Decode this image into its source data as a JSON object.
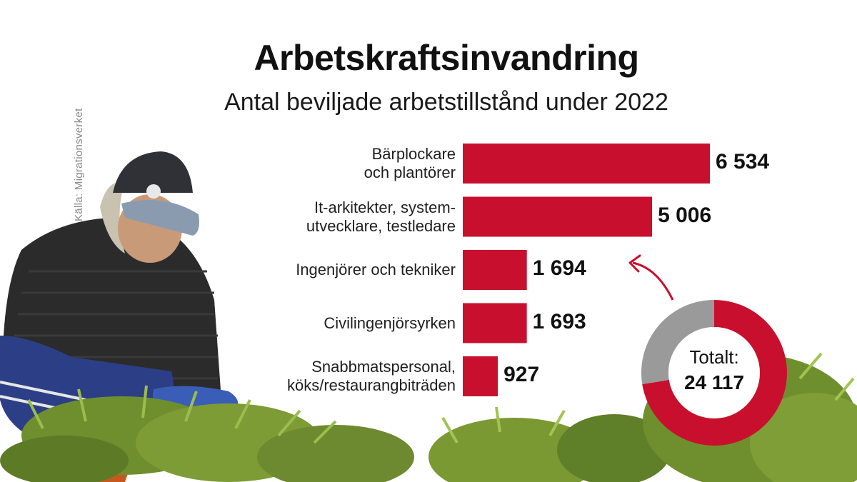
{
  "chart_data": {
    "type": "bar",
    "orientation": "horizontal",
    "title": "Arbetskraftsinvandring",
    "subtitle": "Antal beviljade arbetstillstånd under 2022",
    "source": "Källa: Migrationsverket",
    "categories": [
      "Bärplockare\noch plantörer",
      "It-arkitekter, system-\nutvecklare, testledare",
      "Ingenjörer och tekniker",
      "Civilingenjörsyrken",
      "Snabbmatspersonal,\nköks/restaurangbiträden"
    ],
    "values": [
      6534,
      5006,
      1694,
      1693,
      927
    ],
    "value_labels": [
      "6 534",
      "5 006",
      "1 694",
      "1 693",
      "927"
    ],
    "bar_color": "#c8102e",
    "grid": false,
    "total": {
      "label": "Totalt:",
      "value_label": "24 117",
      "value": 24117,
      "ring_color": "#c8102e",
      "rest_color": "#9a9a9a",
      "highlight_share": 0.725
    }
  }
}
